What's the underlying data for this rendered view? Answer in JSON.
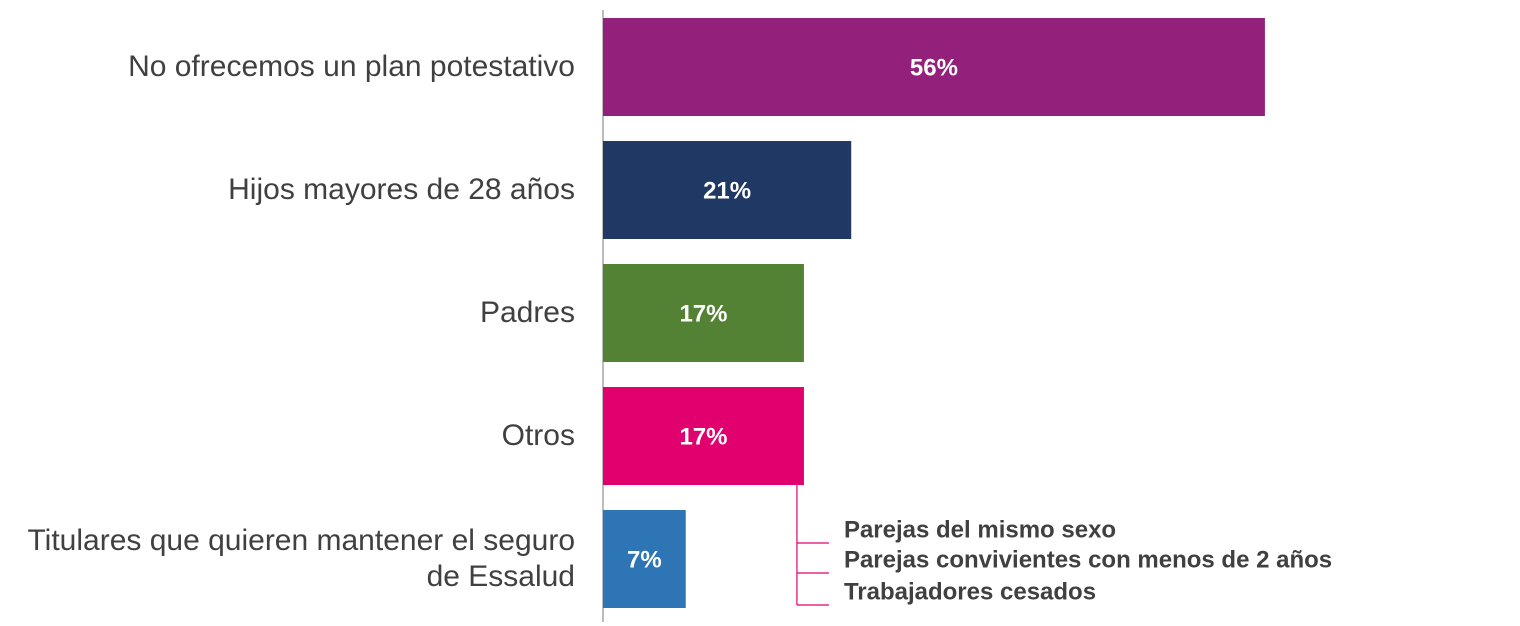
{
  "chart_data": {
    "type": "bar",
    "orientation": "horizontal",
    "categories": [
      "No ofrecemos un plan potestativo",
      "Hijos mayores de 28 años",
      "Padres",
      "Otros",
      "Titulares que quieren mantener el seguro de Essalud"
    ],
    "values": [
      56,
      21,
      17,
      17,
      7
    ],
    "value_labels": [
      "56%",
      "21%",
      "17%",
      "17%",
      "7%"
    ],
    "colors": [
      "#93207a",
      "#203864",
      "#548235",
      "#e0006e",
      "#2e75b6"
    ],
    "xlim": [
      0,
      100
    ],
    "annotations": [
      "Parejas del mismo sexo",
      "Parejas convivientes con menos de 2 años",
      "Trabajadores cesados"
    ]
  }
}
